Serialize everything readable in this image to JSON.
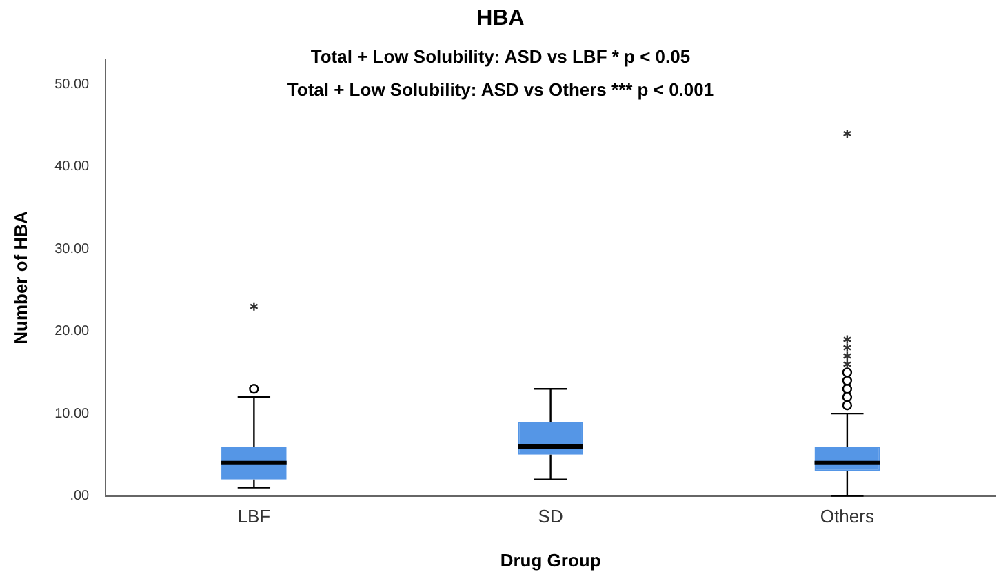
{
  "chart_data": {
    "type": "box",
    "title": "HBA",
    "xlabel": "Drug Group",
    "ylabel": "Number of HBA",
    "annotations": [
      "Total + Low Solubility: ASD vs LBF * p < 0.05",
      "Total + Low Solubility: ASD vs Others *** p < 0.001"
    ],
    "categories": [
      "LBF",
      "SD",
      "Others"
    ],
    "color": "#5596e6",
    "boxes": [
      {
        "low": 1,
        "q1": 2,
        "median": 4,
        "q3": 6,
        "high": 12,
        "outliers": [
          13,
          23
        ]
      },
      {
        "low": 2,
        "q1": 5,
        "median": 6,
        "q3": 9,
        "high": 13
      },
      {
        "low": 0,
        "q1": 3,
        "median": 4,
        "q3": 6,
        "high": 10,
        "outliers": [
          11,
          12,
          13,
          14,
          15,
          16,
          17,
          18,
          19,
          44
        ]
      }
    ],
    "ylim": [
      0,
      53
    ],
    "yticks": [
      {
        "value": 0,
        "label": ".00"
      },
      {
        "value": 10,
        "label": "10.00"
      },
      {
        "value": 20,
        "label": "20.00"
      },
      {
        "value": 30,
        "label": "30.00"
      },
      {
        "value": 40,
        "label": "40.00"
      },
      {
        "value": 50,
        "label": "50.00"
      }
    ],
    "grid": false,
    "legend": false
  }
}
